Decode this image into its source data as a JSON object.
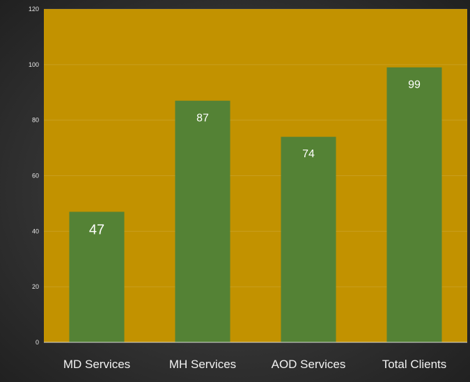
{
  "chart_data": {
    "type": "bar",
    "categories": [
      "MD Services",
      "MH Services",
      "AOD Services",
      "Total Clients"
    ],
    "values": [
      47,
      87,
      74,
      99
    ],
    "ylim": [
      0,
      120
    ],
    "yticks": [
      0,
      20,
      40,
      60,
      80,
      100,
      120
    ],
    "grid": true,
    "title": "",
    "xlabel": "",
    "ylabel": ""
  },
  "colors": {
    "plot_background": "#C29200",
    "bar": "#548235",
    "outer_background": "#2f2f2f",
    "text": "#f2f2f2"
  }
}
